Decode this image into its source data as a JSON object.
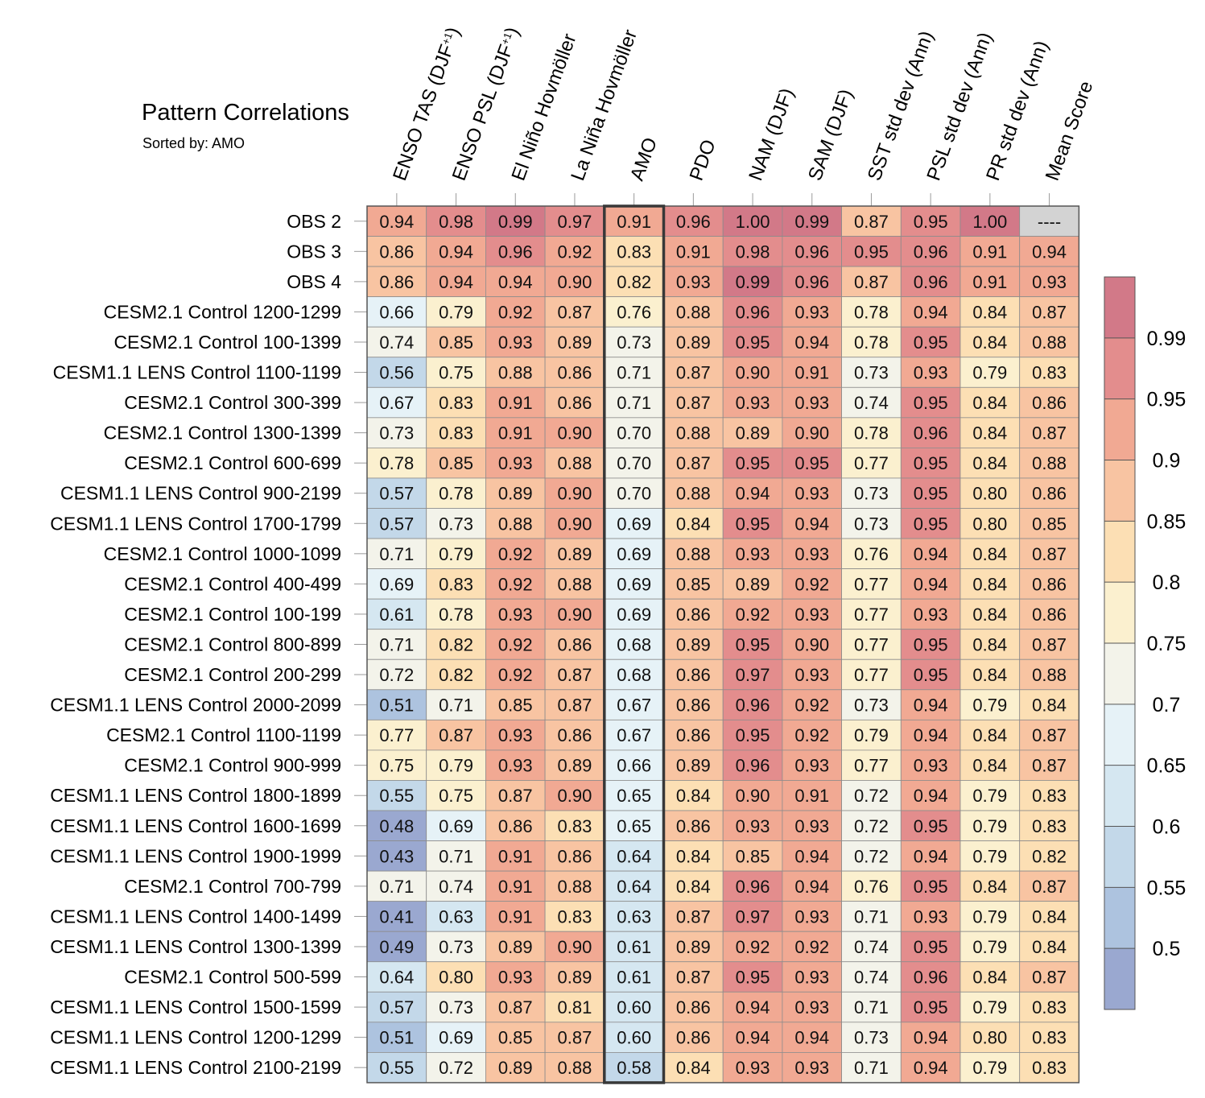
{
  "title": "Pattern Correlations",
  "subtitle": "Sorted by: AMO",
  "chart_data": {
    "type": "heatmap",
    "columns": [
      {
        "pre": "ENSO TAS (DJF",
        "sup": "+1",
        "post": ")"
      },
      {
        "pre": "ENSO PSL (DJF",
        "sup": "+1",
        "post": ")"
      },
      {
        "pre": "El Niño Hovmöller"
      },
      {
        "pre": "La Niña Hovmöller"
      },
      {
        "pre": "AMO"
      },
      {
        "pre": "PDO"
      },
      {
        "pre": "NAM (DJF)"
      },
      {
        "pre": "SAM (DJF)"
      },
      {
        "pre": "SST std dev (Ann)"
      },
      {
        "pre": "PSL std dev (Ann)"
      },
      {
        "pre": "PR std dev (Ann)"
      },
      {
        "pre": "Mean Score"
      }
    ],
    "sorted_column": "AMO",
    "missing_label": "----",
    "rows": [
      {
        "name": "OBS 2",
        "values": [
          0.94,
          0.98,
          0.99,
          0.97,
          0.91,
          0.96,
          1.0,
          0.99,
          0.87,
          0.95,
          1.0,
          null
        ]
      },
      {
        "name": "OBS 3",
        "values": [
          0.86,
          0.94,
          0.96,
          0.92,
          0.83,
          0.91,
          0.98,
          0.96,
          0.95,
          0.96,
          0.91,
          0.94
        ]
      },
      {
        "name": "OBS 4",
        "values": [
          0.86,
          0.94,
          0.94,
          0.9,
          0.82,
          0.93,
          0.99,
          0.96,
          0.87,
          0.96,
          0.91,
          0.93
        ]
      },
      {
        "name": "CESM2.1 Control 1200-1299",
        "values": [
          0.66,
          0.79,
          0.92,
          0.87,
          0.76,
          0.88,
          0.96,
          0.93,
          0.78,
          0.94,
          0.84,
          0.87
        ]
      },
      {
        "name": "CESM2.1 Control 100-1399",
        "values": [
          0.74,
          0.85,
          0.93,
          0.89,
          0.73,
          0.89,
          0.95,
          0.94,
          0.78,
          0.95,
          0.84,
          0.88
        ]
      },
      {
        "name": "CESM1.1 LENS Control 1100-1199",
        "values": [
          0.56,
          0.75,
          0.88,
          0.86,
          0.71,
          0.87,
          0.9,
          0.91,
          0.73,
          0.93,
          0.79,
          0.83
        ]
      },
      {
        "name": "CESM2.1 Control 300-399",
        "values": [
          0.67,
          0.83,
          0.91,
          0.86,
          0.71,
          0.87,
          0.93,
          0.93,
          0.74,
          0.95,
          0.84,
          0.86
        ]
      },
      {
        "name": "CESM2.1 Control 1300-1399",
        "values": [
          0.73,
          0.83,
          0.91,
          0.9,
          0.7,
          0.88,
          0.89,
          0.9,
          0.78,
          0.96,
          0.84,
          0.87
        ]
      },
      {
        "name": "CESM2.1 Control 600-699",
        "values": [
          0.78,
          0.85,
          0.93,
          0.88,
          0.7,
          0.87,
          0.95,
          0.95,
          0.77,
          0.95,
          0.84,
          0.88
        ]
      },
      {
        "name": "CESM1.1 LENS Control 900-2199",
        "values": [
          0.57,
          0.78,
          0.89,
          0.9,
          0.7,
          0.88,
          0.94,
          0.93,
          0.73,
          0.95,
          0.8,
          0.86
        ]
      },
      {
        "name": "CESM1.1 LENS Control 1700-1799",
        "values": [
          0.57,
          0.73,
          0.88,
          0.9,
          0.69,
          0.84,
          0.95,
          0.94,
          0.73,
          0.95,
          0.8,
          0.85
        ]
      },
      {
        "name": "CESM2.1 Control 1000-1099",
        "values": [
          0.71,
          0.79,
          0.92,
          0.89,
          0.69,
          0.88,
          0.93,
          0.93,
          0.76,
          0.94,
          0.84,
          0.87
        ]
      },
      {
        "name": "CESM2.1 Control 400-499",
        "values": [
          0.69,
          0.83,
          0.92,
          0.88,
          0.69,
          0.85,
          0.89,
          0.92,
          0.77,
          0.94,
          0.84,
          0.86
        ]
      },
      {
        "name": "CESM2.1 Control 100-199",
        "values": [
          0.61,
          0.78,
          0.93,
          0.9,
          0.69,
          0.86,
          0.92,
          0.93,
          0.77,
          0.93,
          0.84,
          0.86
        ]
      },
      {
        "name": "CESM2.1 Control 800-899",
        "values": [
          0.71,
          0.82,
          0.92,
          0.86,
          0.68,
          0.89,
          0.95,
          0.9,
          0.77,
          0.95,
          0.84,
          0.87
        ]
      },
      {
        "name": "CESM2.1 Control 200-299",
        "values": [
          0.72,
          0.82,
          0.92,
          0.87,
          0.68,
          0.86,
          0.97,
          0.93,
          0.77,
          0.95,
          0.84,
          0.88
        ]
      },
      {
        "name": "CESM1.1 LENS Control 2000-2099",
        "values": [
          0.51,
          0.71,
          0.85,
          0.87,
          0.67,
          0.86,
          0.96,
          0.92,
          0.73,
          0.94,
          0.79,
          0.84
        ]
      },
      {
        "name": "CESM2.1 Control 1100-1199",
        "values": [
          0.77,
          0.87,
          0.93,
          0.86,
          0.67,
          0.86,
          0.95,
          0.92,
          0.79,
          0.94,
          0.84,
          0.87
        ]
      },
      {
        "name": "CESM2.1 Control 900-999",
        "values": [
          0.75,
          0.79,
          0.93,
          0.89,
          0.66,
          0.89,
          0.96,
          0.93,
          0.77,
          0.93,
          0.84,
          0.87
        ]
      },
      {
        "name": "CESM1.1 LENS Control 1800-1899",
        "values": [
          0.55,
          0.75,
          0.87,
          0.9,
          0.65,
          0.84,
          0.9,
          0.91,
          0.72,
          0.94,
          0.79,
          0.83
        ]
      },
      {
        "name": "CESM1.1 LENS Control 1600-1699",
        "values": [
          0.48,
          0.69,
          0.86,
          0.83,
          0.65,
          0.86,
          0.93,
          0.93,
          0.72,
          0.95,
          0.79,
          0.83
        ]
      },
      {
        "name": "CESM1.1 LENS Control 1900-1999",
        "values": [
          0.43,
          0.71,
          0.91,
          0.86,
          0.64,
          0.84,
          0.85,
          0.94,
          0.72,
          0.94,
          0.79,
          0.82
        ]
      },
      {
        "name": "CESM2.1 Control 700-799",
        "values": [
          0.71,
          0.74,
          0.91,
          0.88,
          0.64,
          0.84,
          0.96,
          0.94,
          0.76,
          0.95,
          0.84,
          0.87
        ]
      },
      {
        "name": "CESM1.1 LENS Control 1400-1499",
        "values": [
          0.41,
          0.63,
          0.91,
          0.83,
          0.63,
          0.87,
          0.97,
          0.93,
          0.71,
          0.93,
          0.79,
          0.84
        ]
      },
      {
        "name": "CESM1.1 LENS Control 1300-1399",
        "values": [
          0.49,
          0.73,
          0.89,
          0.9,
          0.61,
          0.89,
          0.92,
          0.92,
          0.74,
          0.95,
          0.79,
          0.84
        ]
      },
      {
        "name": "CESM2.1 Control 500-599",
        "values": [
          0.64,
          0.8,
          0.93,
          0.89,
          0.61,
          0.87,
          0.95,
          0.93,
          0.74,
          0.96,
          0.84,
          0.87
        ]
      },
      {
        "name": "CESM1.1 LENS Control 1500-1599",
        "values": [
          0.57,
          0.73,
          0.87,
          0.81,
          0.6,
          0.86,
          0.94,
          0.93,
          0.71,
          0.95,
          0.79,
          0.83
        ]
      },
      {
        "name": "CESM1.1 LENS Control 1200-1299",
        "values": [
          0.51,
          0.69,
          0.85,
          0.87,
          0.6,
          0.86,
          0.94,
          0.94,
          0.73,
          0.94,
          0.8,
          0.83
        ]
      },
      {
        "name": "CESM1.1 LENS Control 2100-2199",
        "values": [
          0.55,
          0.72,
          0.89,
          0.88,
          0.58,
          0.84,
          0.93,
          0.93,
          0.71,
          0.94,
          0.79,
          0.83
        ]
      }
    ],
    "colorbar": {
      "labels": [
        "0.99",
        "0.95",
        "0.9",
        "0.85",
        "0.8",
        "0.75",
        "0.7",
        "0.65",
        "0.6",
        "0.55",
        "0.5"
      ],
      "bin_edges": [
        0.5,
        0.55,
        0.6,
        0.65,
        0.7,
        0.75,
        0.8,
        0.85,
        0.9,
        0.95,
        0.99
      ],
      "colors": [
        "#9aa8d0",
        "#adc3df",
        "#c3d8e9",
        "#d5e7f1",
        "#e6f2f7",
        "#f3f3ea",
        "#fbf0cf",
        "#fcdfb4",
        "#f8c4a2",
        "#f1a993",
        "#e38d8d",
        "#d27988"
      ]
    },
    "missing_color": "#d3d3d3",
    "highlight_color": "#383838"
  }
}
